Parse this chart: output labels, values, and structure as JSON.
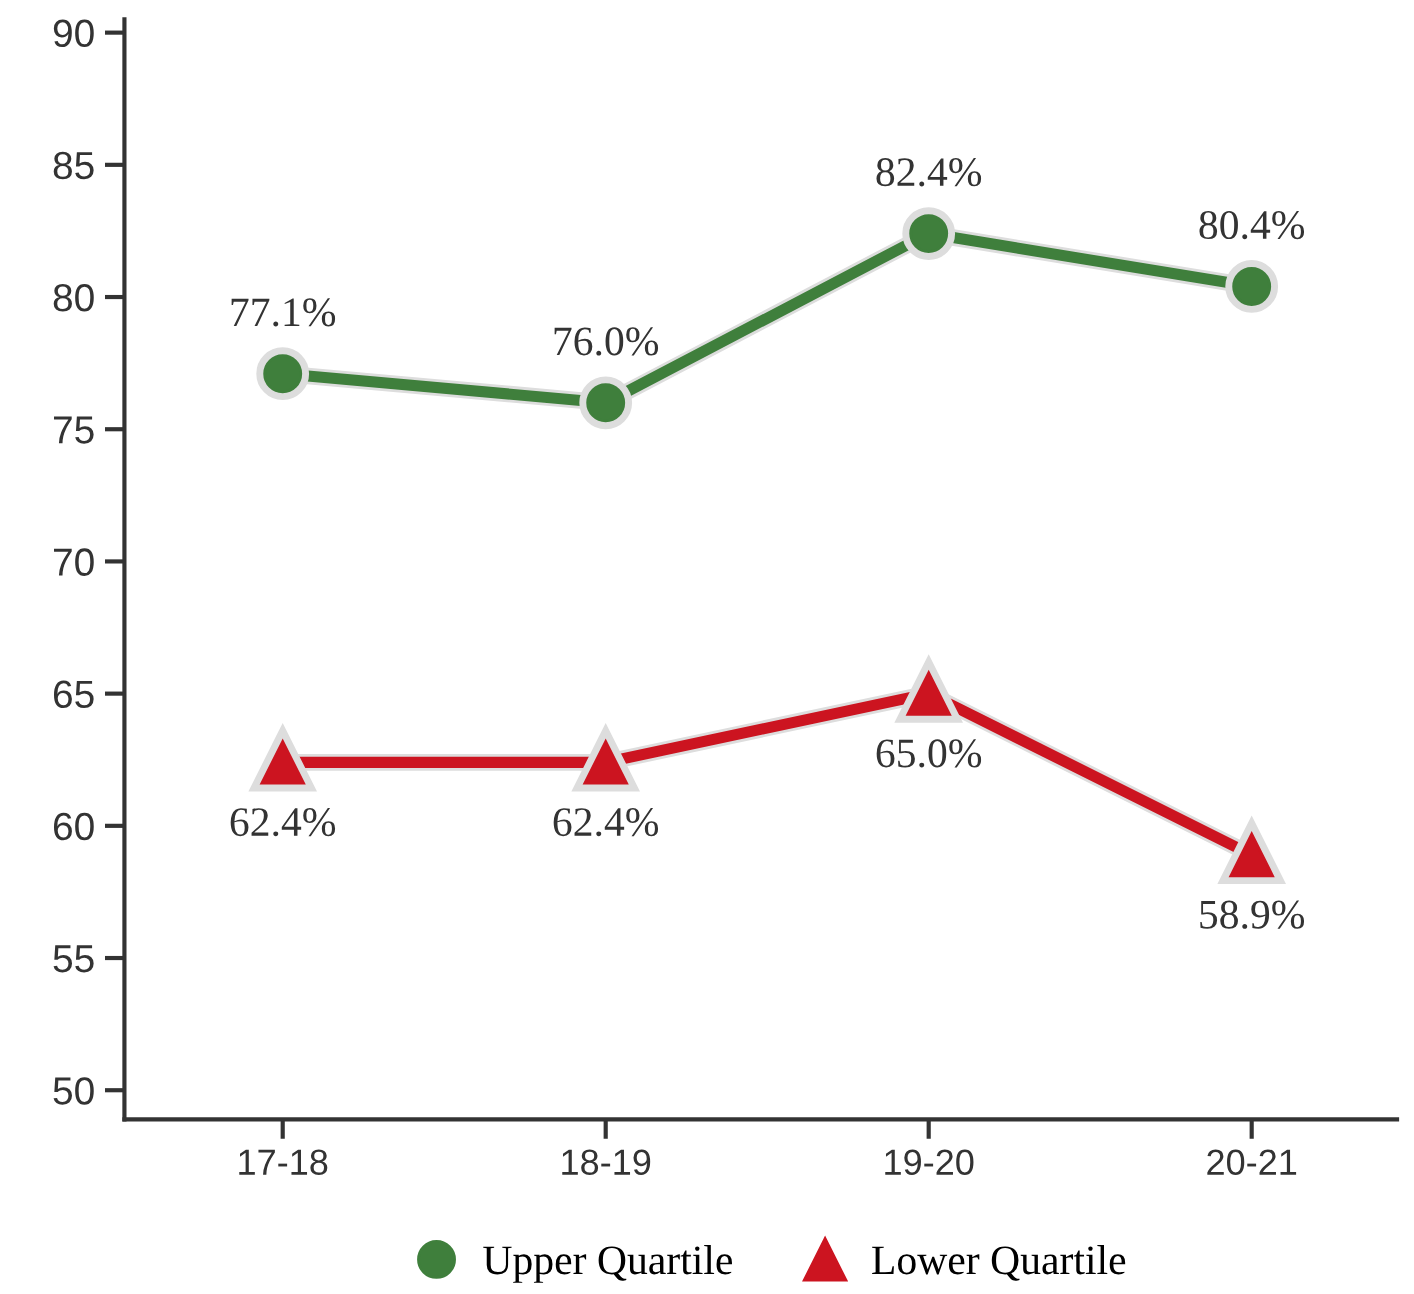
{
  "chart_data": {
    "type": "line",
    "categories": [
      "17-18",
      "18-19",
      "19-20",
      "20-21"
    ],
    "series": [
      {
        "name": "Upper Quartile",
        "color": "#3f7f3c",
        "marker": "circle",
        "values": [
          77.1,
          76.0,
          82.4,
          80.4
        ],
        "value_labels": [
          "77.1%",
          "76.0%",
          "82.4%",
          "80.4%"
        ]
      },
      {
        "name": "Lower Quartile",
        "color": "#cc1420",
        "marker": "triangle",
        "values": [
          62.4,
          62.4,
          65.0,
          58.9
        ],
        "value_labels": [
          "62.4%",
          "62.4%",
          "65.0%",
          "58.9%"
        ]
      }
    ],
    "ylim": [
      48.9,
      90.5
    ],
    "yticks": [
      50,
      55,
      60,
      65,
      70,
      75,
      80,
      85,
      90
    ],
    "grid": false,
    "legend": "bottom"
  }
}
